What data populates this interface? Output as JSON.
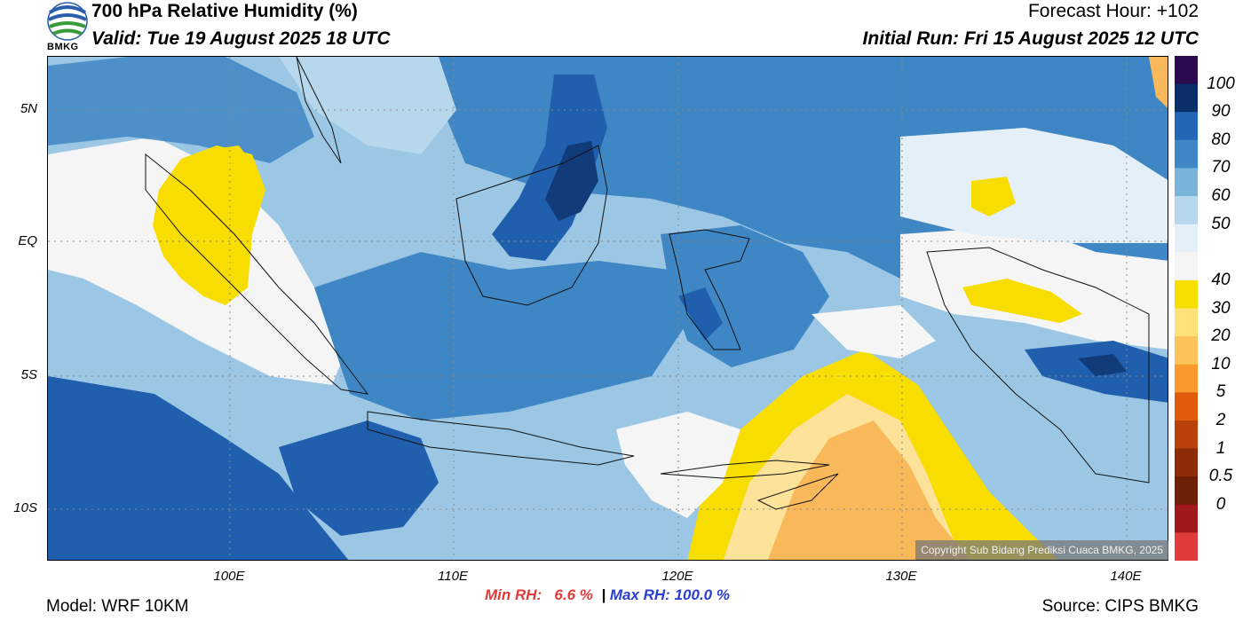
{
  "header": {
    "title": "700 hPa Relative Humidity (%)",
    "valid": "Valid: Tue 19 August 2025 18 UTC",
    "forecast_hour": "Forecast Hour: +102",
    "initial_run": "Initial Run: Fri 15 August 2025 12 UTC"
  },
  "logo": {
    "text": "BMKG",
    "icon": "bmkg-logo"
  },
  "axes": {
    "lat_labels": [
      "5N",
      "EQ",
      "5S",
      "10S"
    ],
    "lon_labels": [
      "100E",
      "110E",
      "120E",
      "130E",
      "140E"
    ]
  },
  "stats": {
    "min_label": "Min RH:",
    "min_value": "6.6 %",
    "separator": "|",
    "max_label": "Max RH:",
    "max_value": "100.0 %"
  },
  "footer": {
    "model": "Model: WRF 10KM",
    "source": "Source: CIPS BMKG",
    "copyright": "Copyright Sub Bidang Prediksi Cuaca BMKG, 2025"
  },
  "colorbar": {
    "labels": [
      "100",
      "90",
      "80",
      "70",
      "60",
      "50",
      "40",
      "30",
      "20",
      "10",
      "5",
      "2",
      "1",
      "0.5",
      "0"
    ],
    "colors": [
      "#2b0a4f",
      "#0b2f6b",
      "#2266b5",
      "#3f86c4",
      "#79b3da",
      "#b7d7ec",
      "#e5eff7",
      "#f5f5f5",
      "#f5df00",
      "#fde27a",
      "#fcc35a",
      "#fb9a2c",
      "#e25a0c",
      "#b8400b",
      "#8d2a08",
      "#6e2107",
      "#a01818",
      "#e03c3c"
    ]
  },
  "map": {
    "colors": {
      "deep_blue": "#1f5fae",
      "blue": "#3f86c4",
      "mid_blue": "#79b3da",
      "light_blue": "#c6dff0",
      "white": "#f5f5f5",
      "yellow": "#f8dd00",
      "light_orange": "#fde39a",
      "orange": "#f9b85a",
      "navy": "#123b7a"
    }
  }
}
